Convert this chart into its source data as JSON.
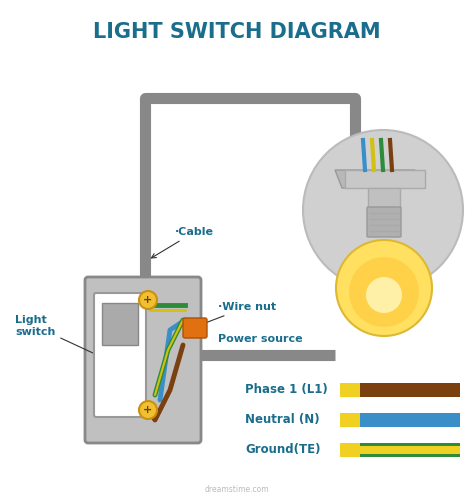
{
  "title": "LIGHT SWITCH DIAGRAM",
  "title_color": "#1a6e8c",
  "title_fontsize": 15,
  "background_color": "#ffffff",
  "legend": [
    {
      "label": "Phase 1 (L1)",
      "color_main": "#7b4010",
      "color_yellow": "#f0d020"
    },
    {
      "label": "Neutral (N)",
      "color_main": "#3a8fc9",
      "color_yellow": "#f0d020"
    },
    {
      "label": "Ground(TE)",
      "color_main": "#2e8b3a",
      "color_yellow": "#f0d020",
      "stripe": true
    }
  ],
  "cable_color": "#888888",
  "cable_lw": 8,
  "wire_colors": {
    "brown": "#7b4010",
    "blue": "#3a8fc9",
    "green": "#2e8b3a",
    "yellow": "#d4c010"
  },
  "box_face": "#c0c0c0",
  "box_edge": "#888888",
  "circle_color": "#d0d0d0",
  "bulb_yellow": "#ffe060",
  "bulb_warm": "#ffcc40",
  "socket_color": "#b8b8b8",
  "wire_nut_color": "#e07010",
  "annotation_color": "#1a6e8c",
  "annotation_fontsize": 8,
  "plus_color": "#cc8800"
}
